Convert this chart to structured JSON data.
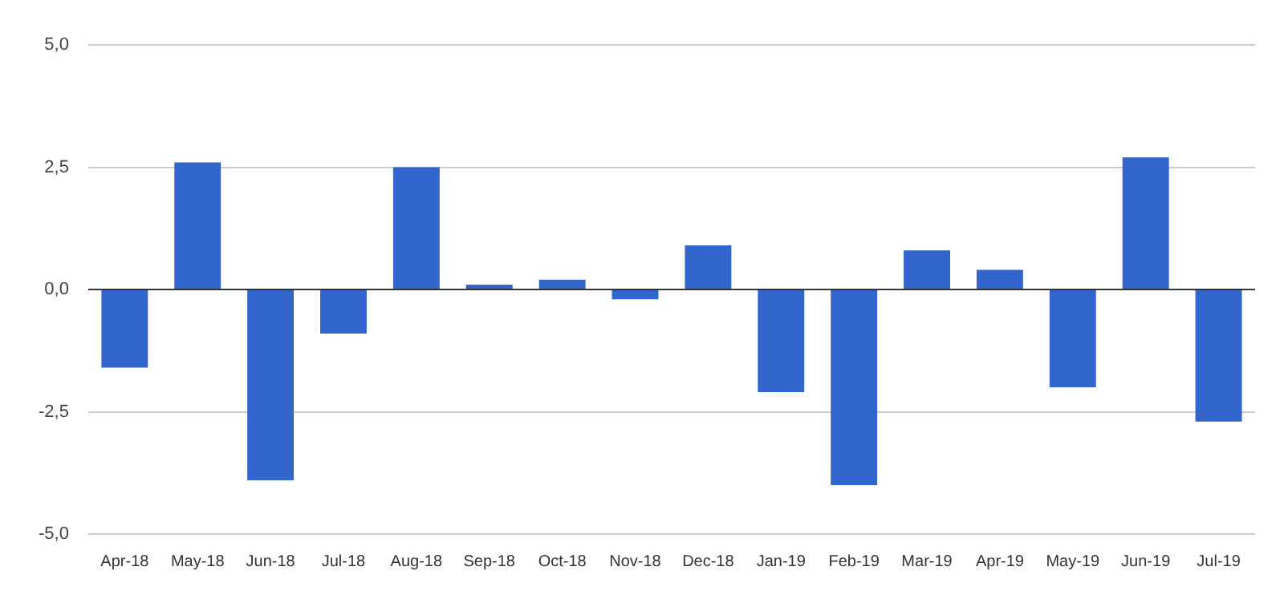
{
  "chart_data": {
    "type": "bar",
    "categories": [
      "Apr-18",
      "May-18",
      "Jun-18",
      "Jul-18",
      "Aug-18",
      "Sep-18",
      "Oct-18",
      "Nov-18",
      "Dec-18",
      "Jan-19",
      "Feb-19",
      "Mar-19",
      "Apr-19",
      "May-19",
      "Jun-19",
      "Jul-19"
    ],
    "values": [
      -1.6,
      2.6,
      -3.9,
      -0.9,
      2.5,
      0.1,
      0.2,
      -0.2,
      0.9,
      -2.1,
      -4.0,
      0.8,
      0.4,
      -2.0,
      2.7,
      -2.7
    ],
    "color": "#3366cc",
    "ylim": [
      -5,
      5
    ],
    "yticks": [
      {
        "value": -5,
        "label": "-5,0"
      },
      {
        "value": -2.5,
        "label": "-2,5"
      },
      {
        "value": 0,
        "label": "0,0"
      },
      {
        "value": 2.5,
        "label": "2,5"
      },
      {
        "value": 5,
        "label": "5,0"
      }
    ],
    "grid": "y"
  }
}
